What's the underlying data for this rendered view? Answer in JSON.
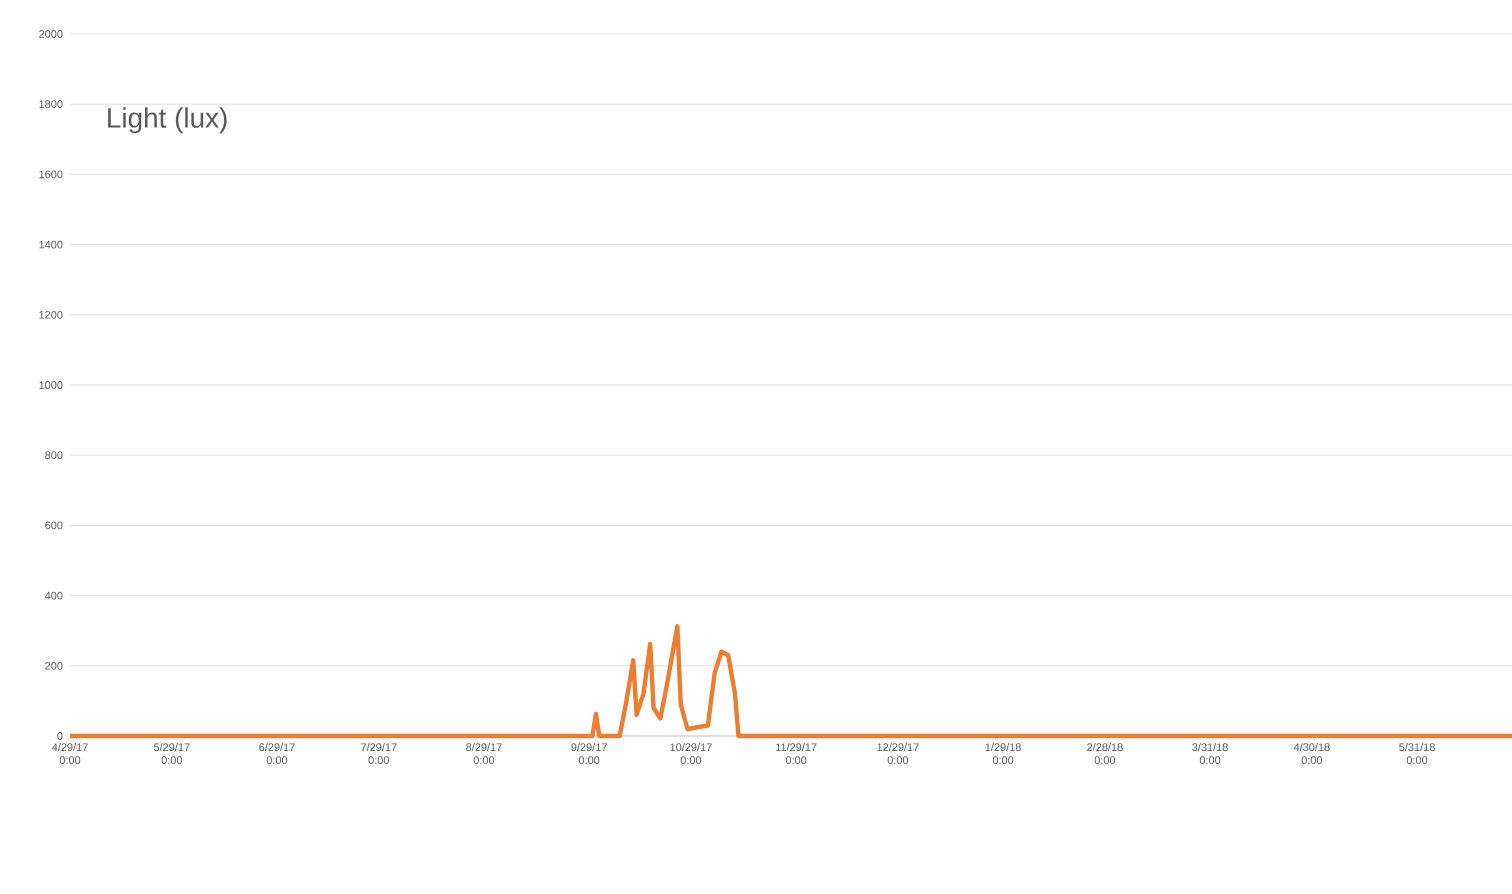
{
  "chart_data": {
    "type": "line",
    "title": "Light (lux)",
    "x": [
      "2017-04-29",
      "2017-09-25",
      "2017-09-30",
      "2017-10-01",
      "2017-10-02",
      "2017-10-08",
      "2017-10-10",
      "2017-10-12",
      "2017-10-13",
      "2017-10-15",
      "2017-10-17",
      "2017-10-18",
      "2017-10-20",
      "2017-10-22",
      "2017-10-25",
      "2017-10-26",
      "2017-10-28",
      "2017-11-03",
      "2017-11-05",
      "2017-11-07",
      "2017-11-09",
      "2017-11-11",
      "2017-11-12",
      "2018-06-28"
    ],
    "series": [
      {
        "color": "#ed7d31",
        "values": [
          0,
          0,
          0,
          63,
          0,
          0,
          100,
          216,
          60,
          120,
          262,
          80,
          50,
          150,
          313,
          90,
          20,
          30,
          180,
          240,
          230,
          120,
          0,
          0
        ]
      }
    ],
    "xlim": [
      "2017-04-29",
      "2018-06-28"
    ],
    "xticks": [
      {
        "value": "2017-04-29",
        "label": "4/29/17 0:00"
      },
      {
        "value": "2017-05-29",
        "label": "5/29/17 0:00"
      },
      {
        "value": "2017-06-29",
        "label": "6/29/17 0:00"
      },
      {
        "value": "2017-07-29",
        "label": "7/29/17 0:00"
      },
      {
        "value": "2017-08-29",
        "label": "8/29/17 0:00"
      },
      {
        "value": "2017-09-29",
        "label": "9/29/17 0:00"
      },
      {
        "value": "2017-10-29",
        "label": "10/29/17 0:00"
      },
      {
        "value": "2017-11-29",
        "label": "11/29/17 0:00"
      },
      {
        "value": "2017-12-29",
        "label": "12/29/17 0:00"
      },
      {
        "value": "2018-01-29",
        "label": "1/29/18 0:00"
      },
      {
        "value": "2018-02-28",
        "label": "2/28/18 0:00"
      },
      {
        "value": "2018-03-31",
        "label": "3/31/18 0:00"
      },
      {
        "value": "2018-04-30",
        "label": "4/30/18 0:00"
      },
      {
        "value": "2018-05-31",
        "label": "5/31/18 0:00"
      }
    ],
    "ylim": [
      0,
      2000
    ],
    "yticks": [
      0,
      200,
      400,
      600,
      800,
      1000,
      1200,
      1400,
      1600,
      1800,
      2000
    ],
    "grid": "y",
    "marker": "none",
    "line_style": "solid"
  }
}
